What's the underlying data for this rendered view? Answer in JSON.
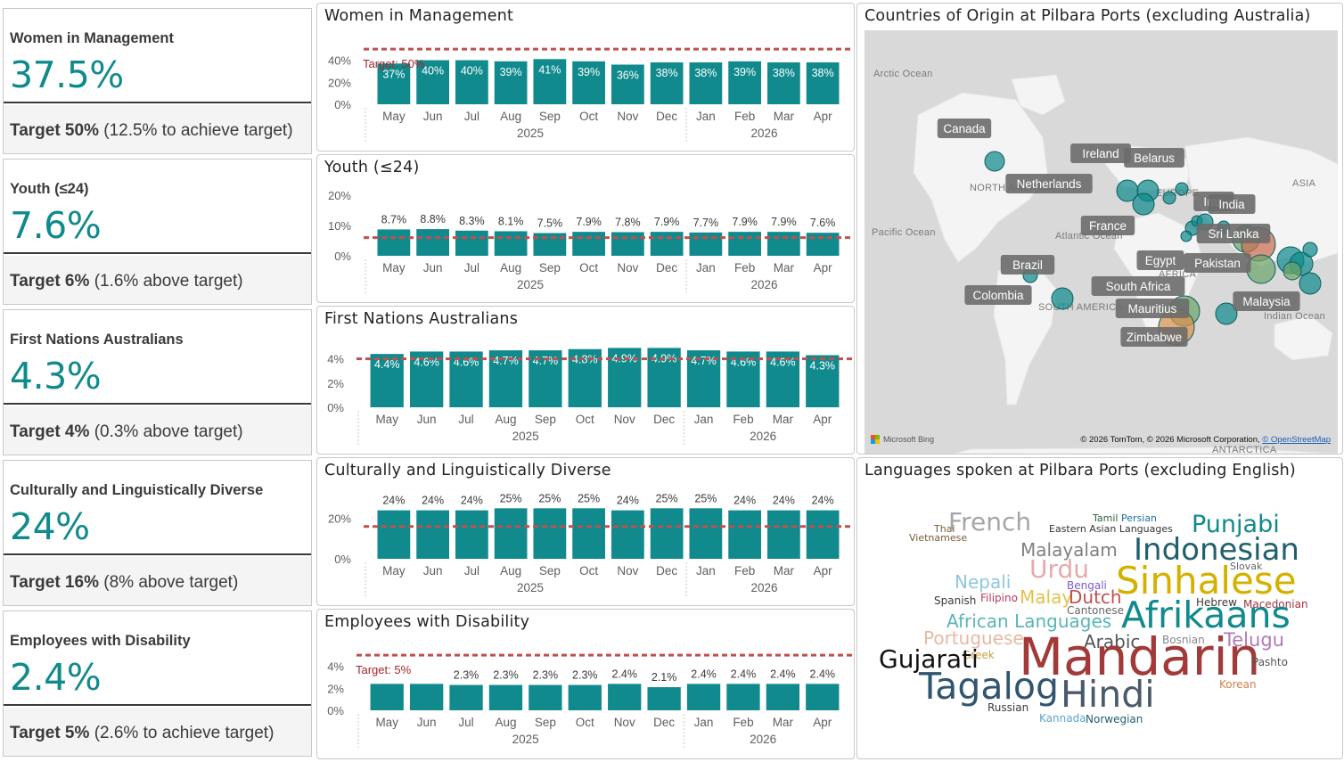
{
  "kpis": [
    {
      "title": "Women in Management",
      "value": "37.5%",
      "target": "Target 50%",
      "note": "(12.5% to achieve target)"
    },
    {
      "title": "Youth (≤24)",
      "value": "7.6%",
      "target": "Target 6%",
      "note": "(1.6% above target)"
    },
    {
      "title": "First Nations Australians",
      "value": "4.3%",
      "target": "Target 4%",
      "note": "(0.3% above target)"
    },
    {
      "title": "Culturally and Linguistically Diverse",
      "value": "24%",
      "target": "Target 16%",
      "note": "(8% above target)"
    },
    {
      "title": "Employees with Disability",
      "value": "2.4%",
      "target": "Target 5%",
      "note": "(2.6% to achieve target)"
    }
  ],
  "months": [
    "May",
    "Jun",
    "Jul",
    "Aug",
    "Sep",
    "Oct",
    "Nov",
    "Dec",
    "Jan",
    "Feb",
    "Mar",
    "Apr"
  ],
  "years": [
    "2025",
    "2026"
  ],
  "chart_data": [
    {
      "type": "bar",
      "title": "Women in Management",
      "categories": [
        "May",
        "Jun",
        "Jul",
        "Aug",
        "Sep",
        "Oct",
        "Nov",
        "Dec",
        "Jan",
        "Feb",
        "Mar",
        "Apr"
      ],
      "values": [
        37,
        40,
        40,
        39,
        41,
        39,
        36,
        38,
        38,
        39,
        38,
        38
      ],
      "labels": [
        "37%",
        "40%",
        "40%",
        "39%",
        "41%",
        "39%",
        "36%",
        "38%",
        "38%",
        "39%",
        "38%",
        "38%"
      ],
      "yticks": [
        "0%",
        "20%",
        "40%"
      ],
      "ylim": [
        0,
        55
      ],
      "target": 50,
      "target_label": "Target: 50%",
      "label_inside": true
    },
    {
      "type": "bar",
      "title": "Youth (≤24)",
      "categories": [
        "May",
        "Jun",
        "Jul",
        "Aug",
        "Sep",
        "Oct",
        "Nov",
        "Dec",
        "Jan",
        "Feb",
        "Mar",
        "Apr"
      ],
      "values": [
        8.7,
        8.8,
        8.3,
        8.1,
        7.5,
        7.9,
        7.8,
        7.9,
        7.7,
        7.9,
        7.9,
        7.6
      ],
      "labels": [
        "8.7%",
        "8.8%",
        "8.3%",
        "8.1%",
        "7.5%",
        "7.9%",
        "7.8%",
        "7.9%",
        "7.7%",
        "7.9%",
        "7.9%",
        "7.6%"
      ],
      "yticks": [
        "0%",
        "10%",
        "20%"
      ],
      "ylim": [
        0,
        20
      ],
      "target": 6,
      "target_label": "",
      "label_inside": false
    },
    {
      "type": "bar",
      "title": "First Nations Australians",
      "categories": [
        "May",
        "Jun",
        "Jul",
        "Aug",
        "Sep",
        "Oct",
        "Nov",
        "Dec",
        "Jan",
        "Feb",
        "Mar",
        "Apr"
      ],
      "values": [
        4.4,
        4.6,
        4.6,
        4.7,
        4.7,
        4.8,
        4.9,
        4.9,
        4.7,
        4.6,
        4.6,
        4.3
      ],
      "labels": [
        "4.4%",
        "4.6%",
        "4.6%",
        "4.7%",
        "4.7%",
        "4.8%",
        "4.9%",
        "4.9%",
        "4.7%",
        "4.6%",
        "4.6%",
        "4.3%"
      ],
      "yticks": [
        "0%",
        "2%",
        "4%"
      ],
      "ylim": [
        0,
        5
      ],
      "target": 4,
      "target_label": "",
      "label_inside": true
    },
    {
      "type": "bar",
      "title": "Culturally and Linguistically Diverse",
      "categories": [
        "May",
        "Jun",
        "Jul",
        "Aug",
        "Sep",
        "Oct",
        "Nov",
        "Dec",
        "Jan",
        "Feb",
        "Mar",
        "Apr"
      ],
      "values": [
        24,
        24,
        24,
        25,
        25,
        25,
        24,
        25,
        25,
        24,
        24,
        24
      ],
      "labels": [
        "24%",
        "24%",
        "24%",
        "25%",
        "25%",
        "25%",
        "24%",
        "25%",
        "25%",
        "24%",
        "24%",
        "24%"
      ],
      "yticks": [
        "0%",
        "20%"
      ],
      "ylim": [
        0,
        30
      ],
      "target": 16,
      "target_label": "",
      "label_inside": false
    },
    {
      "type": "bar",
      "title": "Employees with Disability",
      "categories": [
        "May",
        "Jun",
        "Jul",
        "Aug",
        "Sep",
        "Oct",
        "Nov",
        "Dec",
        "Jan",
        "Feb",
        "Mar",
        "Apr"
      ],
      "values": [
        2.4,
        2.4,
        2.3,
        2.3,
        2.3,
        2.3,
        2.4,
        2.1,
        2.4,
        2.4,
        2.4,
        2.4
      ],
      "labels": [
        "",
        "",
        "2.3%",
        "2.3%",
        "2.3%",
        "2.3%",
        "2.4%",
        "2.1%",
        "2.4%",
        "2.4%",
        "2.4%",
        "2.4%"
      ],
      "yticks": [
        "0%",
        "2%",
        "4%"
      ],
      "ylim": [
        0,
        5.5
      ],
      "target": 5,
      "target_label": "Target: 5%",
      "label_inside": false
    }
  ],
  "map": {
    "title": "Countries of Origin at Pilbara Ports (excluding Australia)",
    "regions": [
      "Arctic Ocean",
      "NORTH AMERICA",
      "Pacific Ocean",
      "Atlantic Ocean",
      "EUROPE",
      "ASIA",
      "AFRICA",
      "SOUTH AMERICA",
      "Indian Ocean",
      "ANTARCTICA"
    ],
    "countries": [
      "Canada",
      "Ireland",
      "Belarus",
      "Netherlands",
      "Iran",
      "India",
      "France",
      "Sri Lanka",
      "Brazil",
      "Egypt",
      "Pakistan",
      "South Africa",
      "Colombia",
      "Malaysia",
      "Mauritius",
      "Zimbabwe"
    ],
    "bing": "Microsoft Bing",
    "attribution": "© 2026 TomTom, © 2026 Microsoft Corporation,",
    "osm": "© OpenStreetMap",
    "bubble_color": "#118a8d"
  },
  "wordcloud": {
    "title": "Languages spoken at Pilbara Ports (excluding English)",
    "words": [
      "Thai",
      "French",
      "Vietnamese",
      "Tamil",
      "Persian",
      "Eastern Asian Languages",
      "Punjabi",
      "Malayalam",
      "Indonesian",
      "Urdu",
      "Slovak",
      "Nepali",
      "Bengali",
      "Sinhalese",
      "Spanish",
      "Filipino",
      "Malay",
      "Dutch",
      "Hebrew",
      "Macedonian",
      "Cantonese",
      "African Languages",
      "Afrikaans",
      "Portuguese",
      "Arabic",
      "Bosnian",
      "Telugu",
      "Greek",
      "Gujarati",
      "Mandarin",
      "Pashto",
      "Tagalog",
      "Hindi",
      "Korean",
      "Russian",
      "Kannada",
      "Norwegian"
    ]
  },
  "colors": {
    "teal": "#118a8d",
    "target_line": "#c0504d",
    "axis_text": "#605e5c"
  }
}
